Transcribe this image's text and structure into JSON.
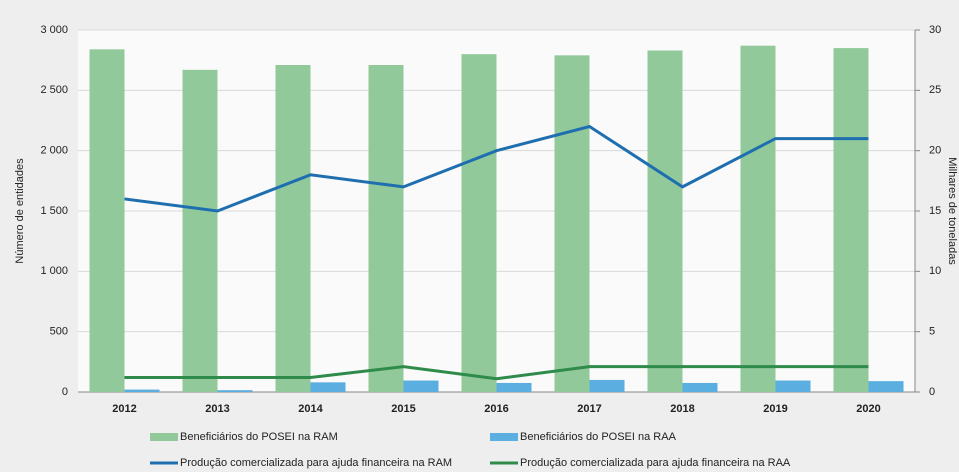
{
  "chart_data": {
    "type": "bar",
    "categories": [
      "2012",
      "2013",
      "2014",
      "2015",
      "2016",
      "2017",
      "2018",
      "2019",
      "2020"
    ],
    "ylabel": "Número de entidades",
    "y2label": "Milhares de toneladas",
    "ylim": [
      0,
      3000
    ],
    "yticks": [
      0,
      500,
      {
        "value": 1000,
        "label": "1 000"
      },
      {
        "value": 1500,
        "label": "1 500"
      },
      {
        "value": 2000,
        "label": "2 000"
      },
      {
        "value": 2500,
        "label": "2 500"
      },
      {
        "value": 3000,
        "label": "3 000"
      }
    ],
    "y2lim": [
      0,
      30
    ],
    "y2ticks": [
      0,
      5,
      10,
      15,
      20,
      25,
      30
    ],
    "grid": true,
    "series": [
      {
        "name": "Beneficiários do POSEI na RAM",
        "type": "bar",
        "color": "#92c99b",
        "values": [
          2840,
          2670,
          2710,
          2710,
          2800,
          2790,
          2830,
          2870,
          2850
        ]
      },
      {
        "name": "Beneficiários do POSEI na RAA",
        "type": "bar",
        "color": "#5aaee0",
        "values": [
          20,
          15,
          80,
          95,
          75,
          100,
          75,
          95,
          90
        ]
      },
      {
        "name": "Produção comercializada para ajuda financeira na RAM",
        "type": "line",
        "axis": "y2",
        "color": "#1f6fb0",
        "values": [
          16,
          15,
          18,
          17,
          20,
          22,
          17,
          21,
          21
        ]
      },
      {
        "name": "Produção comercializada para ajuda financeira na RAA",
        "type": "line",
        "axis": "y2",
        "color": "#2e8b4a",
        "values": [
          1.2,
          1.2,
          1.2,
          2.1,
          1.1,
          2.1,
          2.1,
          2.1,
          2.1
        ]
      }
    ]
  }
}
